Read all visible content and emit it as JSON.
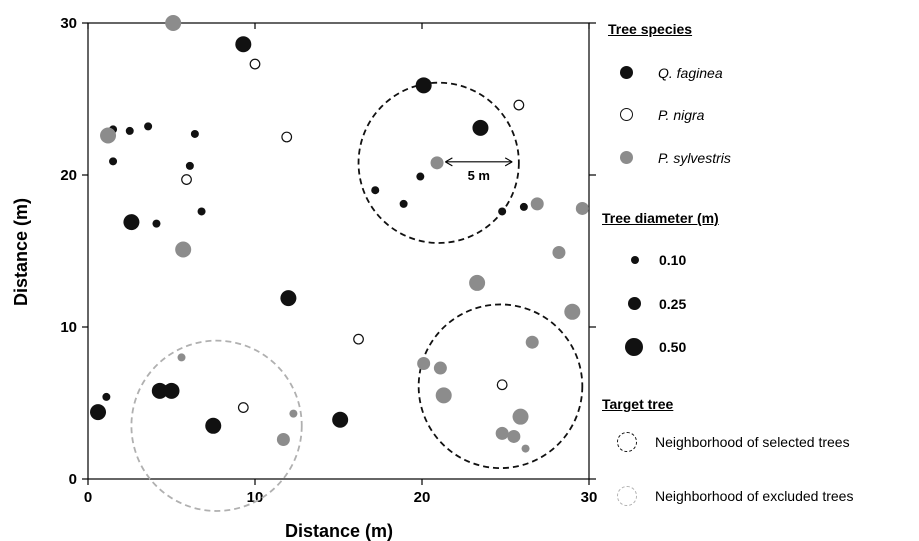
{
  "colors": {
    "q_faginea": "#111111",
    "p_nigra": "#ffffff",
    "p_sylvestris": "#8c8c8c",
    "selected_neighborhood": "#111111",
    "excluded_neighborhood": "#b0b0b0"
  },
  "chart_data": {
    "type": "scatter",
    "xlabel": "Distance (m)",
    "ylabel": "Distance (m)",
    "xlim": [
      0,
      30
    ],
    "ylim": [
      0,
      30
    ],
    "xticks": [
      "0",
      "10",
      "20",
      "30"
    ],
    "yticks": [
      "0",
      "10",
      "20",
      "30"
    ],
    "grid": false,
    "legend_position": "right",
    "annotation": "5 m",
    "scale_arrow": {
      "x1": 21.4,
      "x2": 25.4,
      "y": 20.8
    },
    "series": [
      {
        "name": "Q. faginea",
        "color": "#111111",
        "points": [
          {
            "x": 9.3,
            "y": 28.6,
            "d": 0.5
          },
          {
            "x": 20.1,
            "y": 25.9,
            "d": 0.5
          },
          {
            "x": 23.5,
            "y": 23.1,
            "d": 0.5
          },
          {
            "x": 1.5,
            "y": 23.0,
            "d": 0.1
          },
          {
            "x": 2.5,
            "y": 22.9,
            "d": 0.1
          },
          {
            "x": 3.6,
            "y": 23.2,
            "d": 0.1
          },
          {
            "x": 6.4,
            "y": 22.7,
            "d": 0.1
          },
          {
            "x": 1.5,
            "y": 20.9,
            "d": 0.1
          },
          {
            "x": 6.1,
            "y": 20.6,
            "d": 0.1
          },
          {
            "x": 19.9,
            "y": 19.9,
            "d": 0.1
          },
          {
            "x": 17.2,
            "y": 19.0,
            "d": 0.1
          },
          {
            "x": 18.9,
            "y": 18.1,
            "d": 0.1
          },
          {
            "x": 6.8,
            "y": 17.6,
            "d": 0.1
          },
          {
            "x": 26.1,
            "y": 17.9,
            "d": 0.1
          },
          {
            "x": 24.8,
            "y": 17.6,
            "d": 0.1
          },
          {
            "x": 2.6,
            "y": 16.9,
            "d": 0.5
          },
          {
            "x": 4.1,
            "y": 16.8,
            "d": 0.1
          },
          {
            "x": 12.0,
            "y": 11.9,
            "d": 0.5
          },
          {
            "x": 4.3,
            "y": 5.8,
            "d": 0.5
          },
          {
            "x": 5.0,
            "y": 5.8,
            "d": 0.5
          },
          {
            "x": 1.1,
            "y": 5.4,
            "d": 0.1
          },
          {
            "x": 0.6,
            "y": 4.4,
            "d": 0.5
          },
          {
            "x": 7.5,
            "y": 3.5,
            "d": 0.5
          },
          {
            "x": 15.1,
            "y": 3.9,
            "d": 0.5
          }
        ]
      },
      {
        "name": "P. nigra",
        "color": "#ffffff",
        "points": [
          {
            "x": 10.0,
            "y": 27.3,
            "d": 0.25
          },
          {
            "x": 25.8,
            "y": 24.6,
            "d": 0.25
          },
          {
            "x": 11.9,
            "y": 22.5,
            "d": 0.25
          },
          {
            "x": 5.9,
            "y": 19.7,
            "d": 0.25
          },
          {
            "x": 16.2,
            "y": 9.2,
            "d": 0.25
          },
          {
            "x": 24.8,
            "y": 6.2,
            "d": 0.25
          },
          {
            "x": 9.3,
            "y": 4.7,
            "d": 0.25
          }
        ]
      },
      {
        "name": "P. sylvestris",
        "color": "#8c8c8c",
        "points": [
          {
            "x": 5.1,
            "y": 30.0,
            "d": 0.5
          },
          {
            "x": 1.2,
            "y": 22.6,
            "d": 0.5
          },
          {
            "x": 20.9,
            "y": 20.8,
            "d": 0.25
          },
          {
            "x": 26.9,
            "y": 18.1,
            "d": 0.25
          },
          {
            "x": 29.6,
            "y": 17.8,
            "d": 0.25
          },
          {
            "x": 5.7,
            "y": 15.1,
            "d": 0.5
          },
          {
            "x": 28.2,
            "y": 14.9,
            "d": 0.25
          },
          {
            "x": 23.3,
            "y": 12.9,
            "d": 0.5
          },
          {
            "x": 29.0,
            "y": 11.0,
            "d": 0.5
          },
          {
            "x": 26.6,
            "y": 9.0,
            "d": 0.25
          },
          {
            "x": 5.6,
            "y": 8.0,
            "d": 0.1
          },
          {
            "x": 20.1,
            "y": 7.6,
            "d": 0.25
          },
          {
            "x": 21.1,
            "y": 7.3,
            "d": 0.25
          },
          {
            "x": 21.3,
            "y": 5.5,
            "d": 0.5
          },
          {
            "x": 12.3,
            "y": 4.3,
            "d": 0.1
          },
          {
            "x": 25.9,
            "y": 4.1,
            "d": 0.5
          },
          {
            "x": 24.8,
            "y": 3.0,
            "d": 0.25
          },
          {
            "x": 25.5,
            "y": 2.8,
            "d": 0.25
          },
          {
            "x": 11.7,
            "y": 2.6,
            "d": 0.25
          },
          {
            "x": 26.2,
            "y": 2.0,
            "d": 0.1
          }
        ]
      }
    ],
    "neighborhoods": [
      {
        "type": "selected",
        "x": 21.0,
        "y": 20.8,
        "r": 4.8
      },
      {
        "type": "selected",
        "x": 24.7,
        "y": 6.1,
        "r": 4.9
      },
      {
        "type": "excluded",
        "x": 7.7,
        "y": 3.5,
        "r": 5.1
      }
    ]
  },
  "legend": {
    "species_title": "Tree species",
    "species": [
      "Q. faginea",
      "P. nigra",
      "P. sylvestris"
    ],
    "diameter_title": "Tree diameter (m)",
    "diameters": [
      {
        "label": "0.10",
        "d": 0.1
      },
      {
        "label": "0.25",
        "d": 0.25
      },
      {
        "label": "0.50",
        "d": 0.5
      }
    ],
    "target_title": "Target tree",
    "selected_label": "Neighborhood of selected trees",
    "excluded_label": "Neighborhood of excluded trees"
  }
}
